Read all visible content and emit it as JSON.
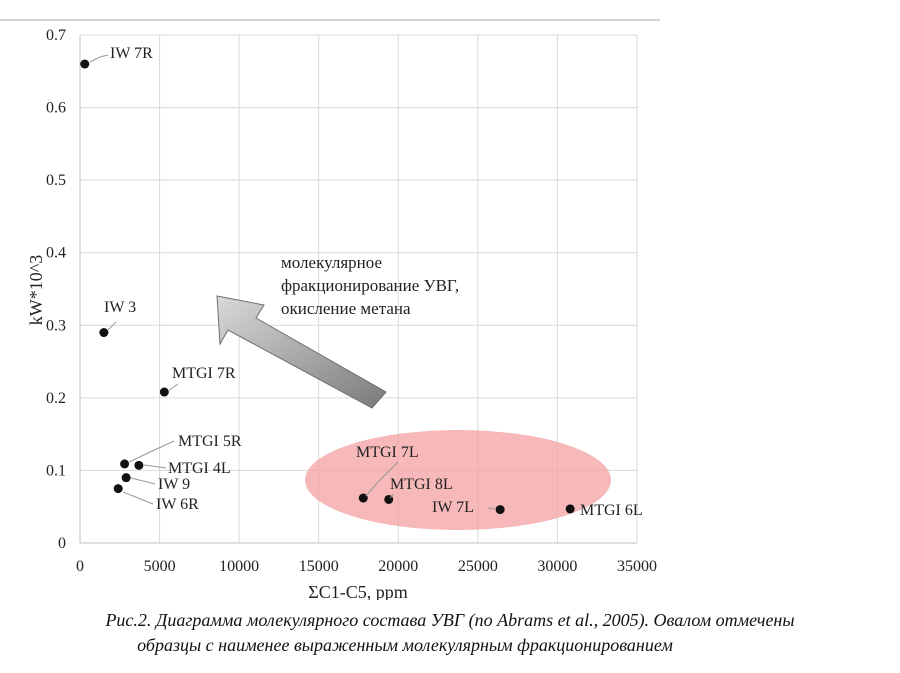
{
  "chart_data": {
    "type": "scatter",
    "xlabel": "ΣC1-C5, ppm",
    "ylabel": "kW*10^3",
    "xlim": [
      0,
      35000
    ],
    "ylim": [
      0,
      0.7
    ],
    "x_ticks": [
      0,
      5000,
      10000,
      15000,
      20000,
      25000,
      30000,
      35000
    ],
    "y_ticks": [
      "0",
      "0.1",
      "0.2",
      "0.3",
      "0.4",
      "0.5",
      "0.6",
      "0.7"
    ],
    "grid": true,
    "points": [
      {
        "label": "IW 7R",
        "x": 300,
        "y": 0.66
      },
      {
        "label": "IW 3",
        "x": 1500,
        "y": 0.29
      },
      {
        "label": "MTGI 7R",
        "x": 5300,
        "y": 0.208
      },
      {
        "label": "MTGI 5R",
        "x": 2800,
        "y": 0.109
      },
      {
        "label": "MTGI 4L",
        "x": 3700,
        "y": 0.107
      },
      {
        "label": "IW 9",
        "x": 2900,
        "y": 0.09
      },
      {
        "label": "IW 6R",
        "x": 2400,
        "y": 0.075
      },
      {
        "label": "MTGI 7L",
        "x": 17800,
        "y": 0.062
      },
      {
        "label": "MTGI 8L",
        "x": 19400,
        "y": 0.06
      },
      {
        "label": "IW 7L",
        "x": 26400,
        "y": 0.046
      },
      {
        "label": "MTGI 6L",
        "x": 30800,
        "y": 0.047
      }
    ],
    "annotation": {
      "lines": [
        "молекулярное",
        "фракционирование УВГ,",
        "окисление метана"
      ]
    },
    "highlight_ellipse_color": "#f3a0a0",
    "arrow_color": "#8a8a8a"
  },
  "caption": {
    "line1": "Рис.2. Диаграмма молекулярного состава УВГ (по Abrams et al., 2005). Овалом отмечены",
    "line2": "образцы с наименее выраженным молекулярным фракционированием"
  }
}
